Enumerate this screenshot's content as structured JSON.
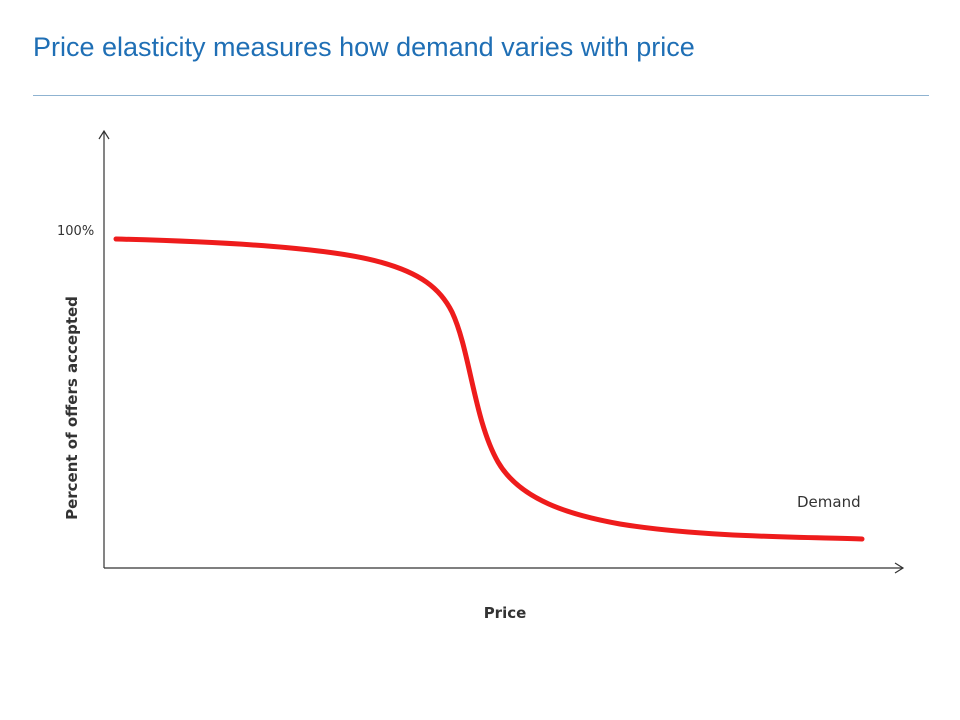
{
  "title": "Price elasticity measures how demand varies with price",
  "diagram": {
    "y_axis_label": "Percent of offers accepted",
    "x_axis_label": "Price",
    "y_tick_label": "100%",
    "curve_label": "Demand",
    "curve_color": "#ee1c1c",
    "axis_color": "#333333"
  }
}
